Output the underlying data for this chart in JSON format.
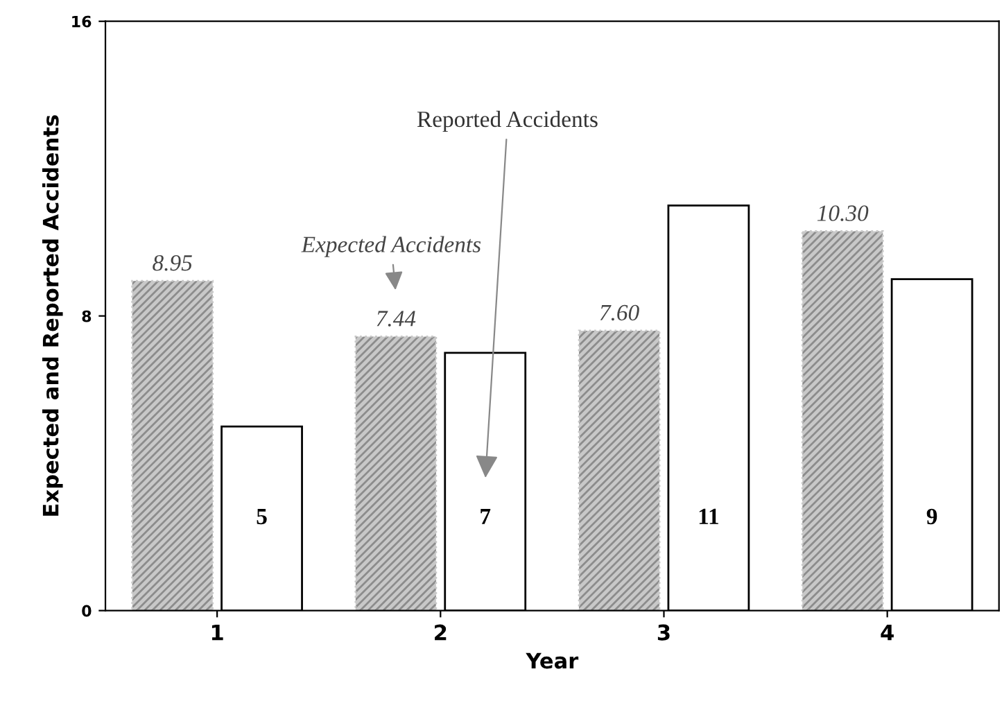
{
  "chart_data": {
    "type": "bar",
    "xlabel": "Year",
    "ylabel": "Expected and Reported Accidents",
    "categories": [
      "1",
      "2",
      "3",
      "4"
    ],
    "series": [
      {
        "color": "#c8c8c8",
        "values": [
          8.95,
          7.44,
          7.6,
          10.3
        ],
        "value_labels": [
          "8.95",
          "7.44",
          "7.60",
          "10.30"
        ]
      },
      {
        "color": "#ffffff",
        "values": [
          5,
          7,
          11,
          9
        ],
        "value_labels": [
          "5",
          "7",
          "11",
          "9"
        ]
      }
    ],
    "annotations": [
      "Expected Accidents",
      "Reported Accidents"
    ],
    "ylim": [
      0,
      16
    ],
    "yticks": [
      0,
      8,
      16
    ],
    "grid": false,
    "legend": false
  }
}
